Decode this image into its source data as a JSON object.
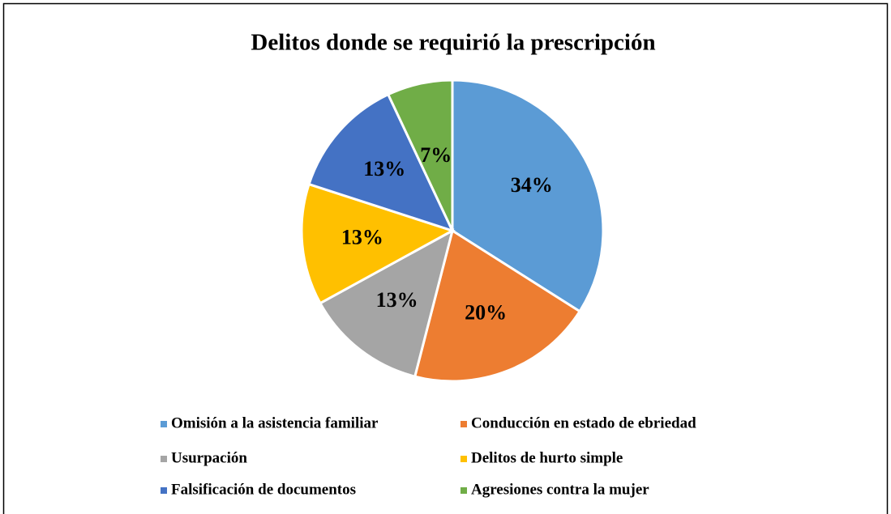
{
  "chart_data": {
    "type": "pie",
    "title": "Delitos donde se requirió la prescripción",
    "categories": [
      "Omisión a la asistencia familiar",
      "Conducción en estado de ebriedad",
      "Usurpación",
      "Delitos de hurto simple",
      "Falsificación de documentos",
      "Agresiones contra la mujer"
    ],
    "values": [
      34,
      20,
      13,
      13,
      13,
      7
    ],
    "value_labels": [
      "34%",
      "20%",
      "13%",
      "13%",
      "13%",
      "7%"
    ],
    "colors": [
      "#5b9bd5",
      "#ed7d31",
      "#a5a5a5",
      "#ffc000",
      "#4472c4",
      "#70ad47"
    ],
    "legend": "bottom"
  }
}
